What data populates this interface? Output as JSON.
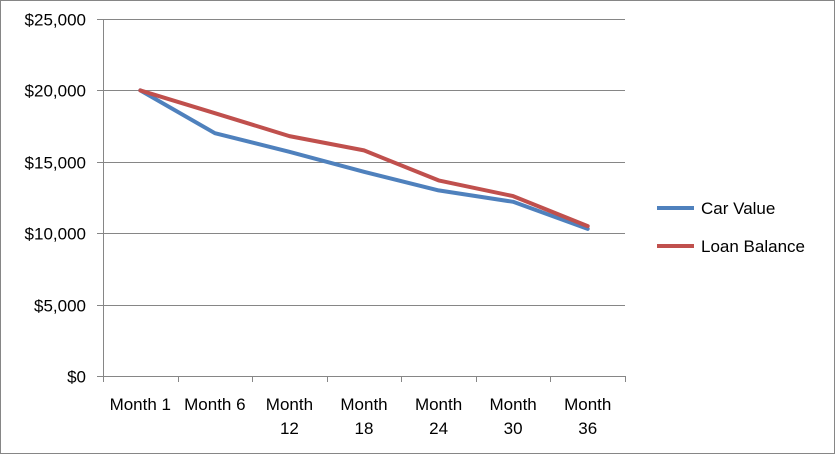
{
  "chart_data": {
    "type": "line",
    "categories": [
      "Month 1",
      "Month 6",
      "Month 12",
      "Month 18",
      "Month 24",
      "Month 30",
      "Month 36"
    ],
    "category_labels": [
      [
        "Month 1"
      ],
      [
        "Month 6"
      ],
      [
        "Month",
        "12"
      ],
      [
        "Month",
        "18"
      ],
      [
        "Month",
        "24"
      ],
      [
        "Month",
        "30"
      ],
      [
        "Month",
        "36"
      ]
    ],
    "series": [
      {
        "name": "Car Value",
        "color": "#4f81bd",
        "values": [
          20000,
          17000,
          15700,
          14300,
          13000,
          12200,
          10300
        ]
      },
      {
        "name": "Loan Balance",
        "color": "#c0504d",
        "values": [
          20000,
          18400,
          16800,
          15800,
          13700,
          12600,
          10500
        ]
      }
    ],
    "ylim": [
      0,
      25000
    ],
    "y_ticks": [
      0,
      5000,
      10000,
      15000,
      20000,
      25000
    ],
    "y_tick_labels": [
      "$0",
      "$5,000",
      "$10,000",
      "$15,000",
      "$20,000",
      "$25,000"
    ],
    "grid": true,
    "legend_position": "right",
    "gridline_color": "#868686"
  }
}
